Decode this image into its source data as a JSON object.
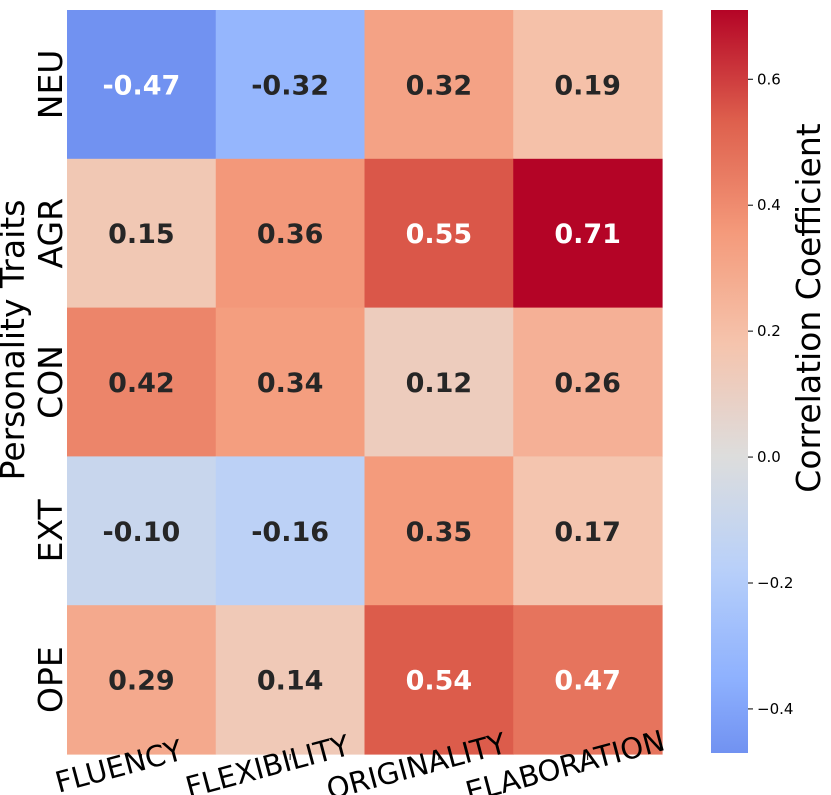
{
  "chart_data": {
    "type": "heatmap",
    "rows": [
      "NEU",
      "AGR",
      "CON",
      "EXT",
      "OPE"
    ],
    "columns": [
      "FLUENCY",
      "FLEXIBILITY",
      "ORIGINALITY",
      "ELABORATION"
    ],
    "values": [
      [
        -0.47,
        -0.32,
        0.32,
        0.19
      ],
      [
        0.15,
        0.36,
        0.55,
        0.71
      ],
      [
        0.42,
        0.34,
        0.12,
        0.26
      ],
      [
        -0.1,
        -0.16,
        0.35,
        0.17
      ],
      [
        0.29,
        0.14,
        0.54,
        0.47
      ]
    ],
    "value_labels": [
      [
        "-0.47",
        "-0.32",
        "0.32",
        "0.19"
      ],
      [
        "0.15",
        "0.36",
        "0.55",
        "0.71"
      ],
      [
        "0.42",
        "0.34",
        "0.12",
        "0.26"
      ],
      [
        "-0.10",
        "-0.16",
        "0.35",
        "0.17"
      ],
      [
        "0.29",
        "0.14",
        "0.54",
        "0.47"
      ]
    ],
    "ylabel": "Personality Traits",
    "colorbar_label": "Correlation Coefficient",
    "colormap": "coolwarm",
    "vmin": -0.47,
    "vmax": 0.71,
    "center": 0.0,
    "colorbar_ticks": [
      0.6,
      0.4,
      0.2,
      0.0,
      -0.2,
      -0.4
    ],
    "colorbar_tick_labels": [
      "0.6",
      "0.4",
      "0.2",
      "0.0",
      "−0.2",
      "−0.4"
    ]
  }
}
